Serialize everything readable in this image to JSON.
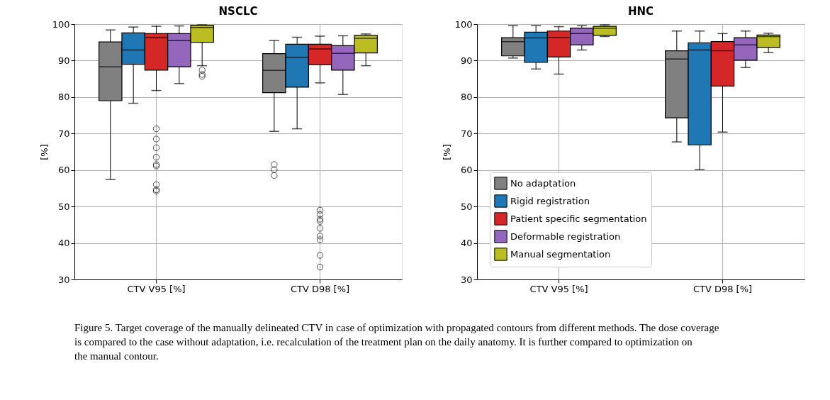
{
  "chart_data": [
    {
      "type": "box",
      "title": "NSCLC",
      "ylabel": "[%]",
      "categories": [
        "CTV V95 [%]",
        "CTV D98 [%]"
      ],
      "ylim": [
        30,
        100
      ],
      "yticks": [
        30,
        40,
        50,
        60,
        70,
        80,
        90,
        100
      ],
      "grid": true,
      "legend": false,
      "annotations": [
        "Figure 5. Target coverage of the manually delineated CTV in case of optimization with propagated contours from different methods. The dose coverage is compared to the case without adaptation, i.e. recalculation of the treatment plan on the daily anatomy. It is further compared to optimization on the manual contour."
      ],
      "series": [
        {
          "color": "#808080",
          "boxes": [
            {
              "low": 57.4,
              "q1": 79.0,
              "median": 88.3,
              "q3": 95.1,
              "high": 98.4
            },
            {
              "low": 70.6,
              "q1": 81.2,
              "median": 87.3,
              "q3": 91.9,
              "high": 95.5,
              "outliers": [
                61.5,
                60.1,
                58.5
              ]
            }
          ]
        },
        {
          "color": "#1f77b4",
          "boxes": [
            {
              "low": 78.3,
              "q1": 89.0,
              "median": 92.9,
              "q3": 97.6,
              "high": 99.2
            },
            {
              "low": 71.3,
              "q1": 82.7,
              "median": 90.9,
              "q3": 94.5,
              "high": 96.4
            }
          ]
        },
        {
          "color": "#d62728",
          "boxes": [
            {
              "low": 81.8,
              "q1": 87.4,
              "median": 96.3,
              "q3": 97.4,
              "high": 99.4,
              "outliers": [
                71.3,
                68.5,
                66.1,
                63.5,
                61.5,
                61.1,
                56.0,
                54.6,
                54.2
              ]
            },
            {
              "low": 83.9,
              "q1": 88.9,
              "median": 93.2,
              "q3": 94.5,
              "high": 96.7,
              "outliers": [
                49.0,
                47.8,
                46.5,
                45.9,
                44.0,
                41.9,
                40.9,
                36.6,
                33.4
              ]
            }
          ]
        },
        {
          "color": "#9467bd",
          "boxes": [
            {
              "low": 83.7,
              "q1": 88.3,
              "median": 95.5,
              "q3": 97.4,
              "high": 99.5
            },
            {
              "low": 80.7,
              "q1": 87.4,
              "median": 92.0,
              "q3": 94.1,
              "high": 96.8
            }
          ]
        },
        {
          "color": "#bcbd22",
          "boxes": [
            {
              "low": 88.6,
              "q1": 95.0,
              "median": 99.1,
              "q3": 99.7,
              "high": 99.8,
              "outliers": [
                87.4,
                86.2,
                85.7
              ]
            },
            {
              "low": 88.6,
              "q1": 92.1,
              "median": 96.1,
              "q3": 96.9,
              "high": 97.3
            }
          ]
        }
      ]
    },
    {
      "type": "box",
      "title": "HNC",
      "ylabel": "[%]",
      "categories": [
        "CTV V95 [%]",
        "CTV D98 [%]"
      ],
      "ylim": [
        30,
        100
      ],
      "yticks": [
        30,
        40,
        50,
        60,
        70,
        80,
        90,
        100
      ],
      "grid": true,
      "legend": "bottom left",
      "series": [
        {
          "name": "No adaptation",
          "color": "#808080",
          "boxes": [
            {
              "low": 90.7,
              "q1": 91.3,
              "median": 95.2,
              "q3": 96.3,
              "high": 99.6
            },
            {
              "low": 67.7,
              "q1": 74.3,
              "median": 90.4,
              "q3": 92.7,
              "high": 98.1
            }
          ]
        },
        {
          "name": "Rigid registration",
          "color": "#1f77b4",
          "boxes": [
            {
              "low": 87.7,
              "q1": 89.5,
              "median": 96.2,
              "q3": 97.8,
              "high": 99.6
            },
            {
              "low": 60.1,
              "q1": 66.9,
              "median": 92.9,
              "q3": 94.9,
              "high": 98.1
            }
          ]
        },
        {
          "name": "Patient specific segmentation",
          "color": "#d62728",
          "boxes": [
            {
              "low": 86.3,
              "q1": 91.0,
              "median": 96.3,
              "q3": 98.1,
              "high": 99.3
            },
            {
              "low": 70.4,
              "q1": 83.0,
              "median": 92.7,
              "q3": 95.2,
              "high": 97.4
            }
          ]
        },
        {
          "name": "Deformable registration",
          "color": "#9467bd",
          "boxes": [
            {
              "low": 92.9,
              "q1": 94.3,
              "median": 97.4,
              "q3": 98.9,
              "high": 99.6
            },
            {
              "low": 88.1,
              "q1": 90.1,
              "median": 94.3,
              "q3": 96.3,
              "high": 98.1
            }
          ]
        },
        {
          "name": "Manual segmentation",
          "color": "#bcbd22",
          "boxes": [
            {
              "low": 96.6,
              "q1": 96.9,
              "median": 98.9,
              "q3": 99.4,
              "high": 99.8
            },
            {
              "low": 92.2,
              "q1": 93.6,
              "median": 96.6,
              "q3": 97.0,
              "high": 97.5
            }
          ]
        }
      ]
    }
  ]
}
